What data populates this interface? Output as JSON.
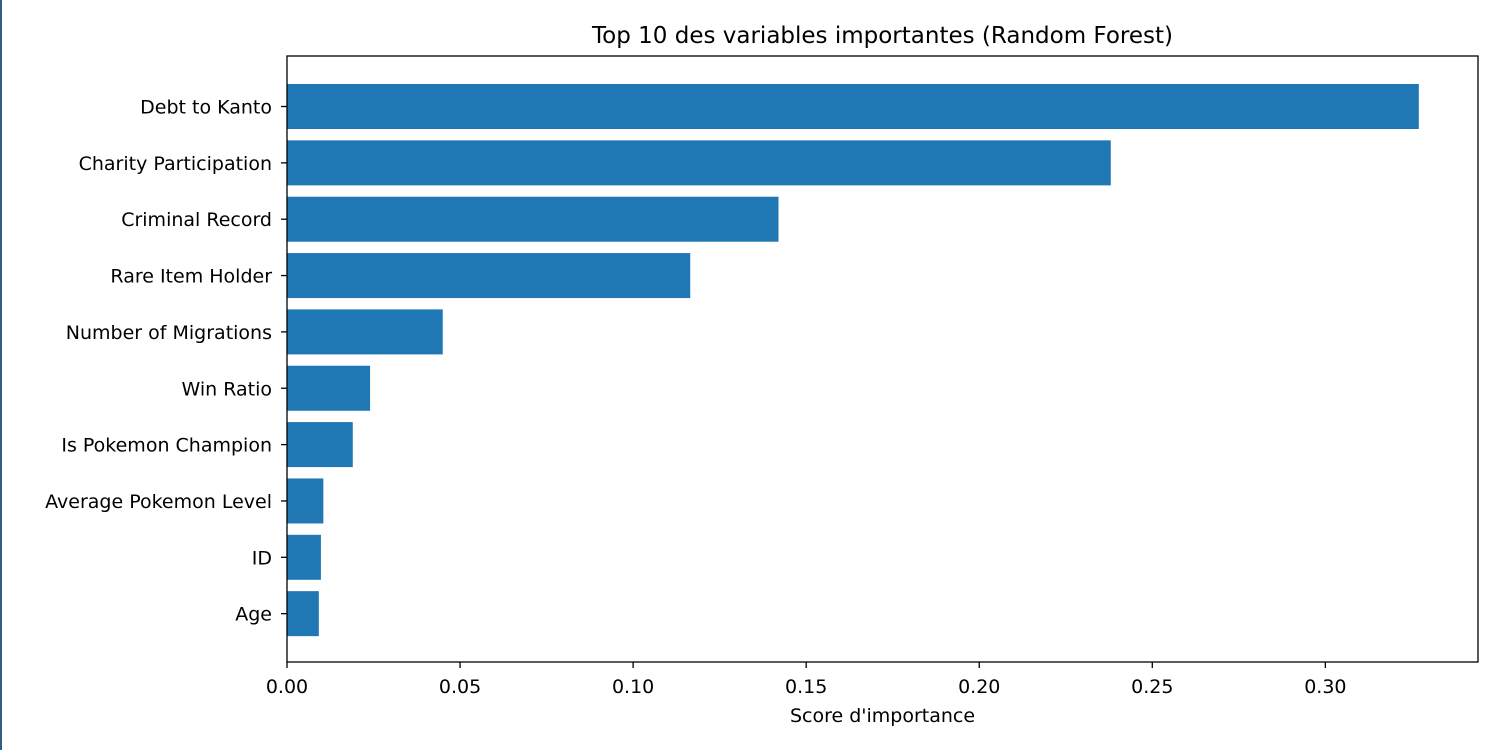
{
  "chart_data": {
    "type": "bar",
    "orientation": "horizontal",
    "title": "Top 10 des variables importantes (Random Forest)",
    "xlabel": "Score d'importance",
    "ylabel": "",
    "categories": [
      "Debt to Kanto",
      "Charity Participation",
      "Criminal Record",
      "Rare Item Holder",
      "Number of Migrations",
      "Win Ratio",
      "Is Pokemon Champion",
      "Average Pokemon Level",
      "ID",
      "Age"
    ],
    "values": [
      0.327,
      0.238,
      0.142,
      0.1165,
      0.045,
      0.024,
      0.019,
      0.0105,
      0.0098,
      0.0092
    ],
    "xlim": [
      0,
      0.3441
    ],
    "xticks": [
      0.0,
      0.05,
      0.1,
      0.15,
      0.2,
      0.25,
      0.3
    ],
    "xtick_labels": [
      "0.00",
      "0.05",
      "0.10",
      "0.15",
      "0.20",
      "0.25",
      "0.30"
    ],
    "grid": false,
    "bar_color": "#1f77b4"
  }
}
